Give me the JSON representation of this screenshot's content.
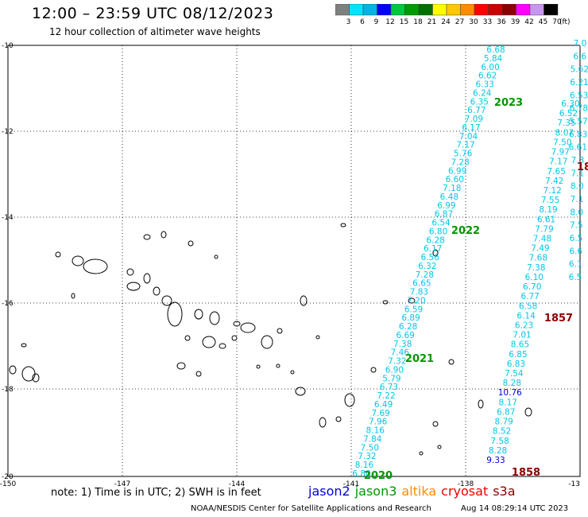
{
  "header": {
    "title": "12:00 – 23:59 UTC 08/12/2023",
    "subtitle": "12 hour collection of altimeter wave heights"
  },
  "colorbar": {
    "unit": "(ft)",
    "bins": [
      {
        "label": "3",
        "color": "#7f7f7f"
      },
      {
        "label": "6",
        "color": "#00e5ff"
      },
      {
        "label": "9",
        "color": "#00b4e6"
      },
      {
        "label": "12",
        "color": "#0000ff"
      },
      {
        "label": "15",
        "color": "#00c83c"
      },
      {
        "label": "18",
        "color": "#009b00"
      },
      {
        "label": "21",
        "color": "#007000"
      },
      {
        "label": "24",
        "color": "#ffff00"
      },
      {
        "label": "27",
        "color": "#ffc800"
      },
      {
        "label": "30",
        "color": "#ff8c00"
      },
      {
        "label": "33",
        "color": "#ff0000"
      },
      {
        "label": "36",
        "color": "#cc0000"
      },
      {
        "label": "39",
        "color": "#8b0000"
      },
      {
        "label": "42",
        "color": "#ff00ff"
      },
      {
        "label": "45",
        "color": "#c896f0"
      },
      {
        "label": "70",
        "color": "#000000"
      }
    ]
  },
  "axes": {
    "lon_labels": [
      "-150",
      "-147",
      "-144",
      "-141",
      "-138",
      "-13"
    ],
    "lat_labels": [
      "-10",
      "-12",
      "-14",
      "-16",
      "-18",
      "-20"
    ]
  },
  "tracks": [
    {
      "name": "track-a",
      "color": "#00c8e6",
      "values": [
        "6.68",
        "5.84",
        "6.00",
        "6.62",
        "6.33",
        "6.24",
        "6.35",
        "6.77",
        "7.09",
        "6.17",
        "7.04",
        "7.17",
        "5.76",
        "7.28",
        "6.99",
        "6.60",
        "7.18",
        "6.48",
        "6.99",
        "6.87",
        "6.54",
        "6.80",
        "6.28",
        "6.17",
        "6.56",
        "6.32",
        "7.28",
        "6.65",
        "7.83",
        "7.20",
        "6.59",
        "6.89",
        "6.28",
        "6.69",
        "7.38",
        "7.46",
        "7.32",
        "6.90",
        "5.79",
        "6.73",
        "7.22",
        "6.49",
        "7.69",
        "7.96",
        "8.16",
        "7.84",
        "7.50",
        "7.32",
        "8.16",
        "6.80"
      ]
    },
    {
      "name": "track-b",
      "color": "#00c8e6",
      "values": [
        "6.30",
        "6.52",
        "7.35",
        "8.07",
        "7.50",
        "7.97",
        "7.17",
        "7.65",
        "7.42",
        "7.12",
        "7.55",
        "8.19",
        "6.61",
        "7.79",
        "7.48",
        "7.49",
        "7.68",
        "7.38",
        "6.10",
        "6.70",
        "6.77",
        "6.58",
        "6.14",
        "6.23",
        "7.01",
        "8.65",
        "6.85",
        "6.83",
        "7.54",
        "8.28",
        "10.76",
        "8.17",
        "6.87",
        "8.79",
        "8.52",
        "7.58",
        "8.28",
        "9.33"
      ]
    },
    {
      "name": "track-c",
      "color": "#00c8e6",
      "values": [
        "7.0",
        "6.6",
        "5.62",
        "6.21",
        "6.53",
        "6.78",
        "5.57",
        "6.83",
        "6.61",
        "7.3",
        "7.1",
        "8.0",
        "7.1",
        "8.0",
        "7.5",
        "6.5",
        "6.6",
        "6.1",
        "6.5"
      ]
    }
  ],
  "highlight_values": [
    {
      "text": "10.76",
      "color": "#0000cc"
    },
    {
      "text": "9.33",
      "color": "#0000cc"
    }
  ],
  "time_labels": [
    {
      "text": "2023",
      "color": "#009600"
    },
    {
      "text": "2022",
      "color": "#009600"
    },
    {
      "text": "2021",
      "color": "#009600"
    },
    {
      "text": "2020",
      "color": "#009600"
    },
    {
      "text": "1857",
      "color": "#8b0000"
    },
    {
      "text": "1858",
      "color": "#8b0000"
    },
    {
      "text": "18",
      "color": "#8b0000"
    }
  ],
  "footer": {
    "note": "note: 1) Time is in UTC; 2) SWH is in feet",
    "satellites": [
      {
        "name": "jason2",
        "color": "#0000dd"
      },
      {
        "name": "jason3",
        "color": "#009600"
      },
      {
        "name": "altika",
        "color": "#ff8c00"
      },
      {
        "name": "cryosat",
        "color": "#ee0000"
      },
      {
        "name": "s3a",
        "color": "#8b0000"
      }
    ],
    "credit": "NOAA/NESDIS Center for Satellite Applications and Research",
    "generated": "Aug 14 08:29:14 UTC 2023"
  }
}
